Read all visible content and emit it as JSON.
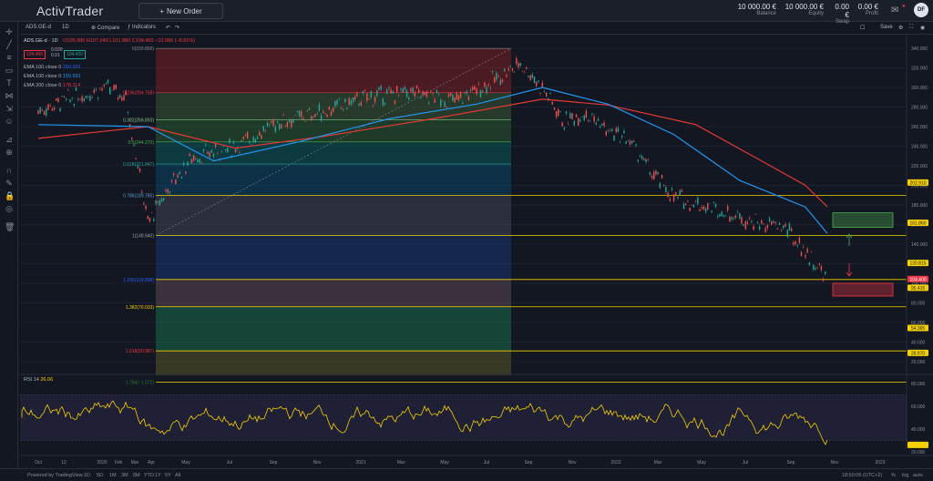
{
  "app": {
    "brand": "ActivTrader",
    "new_order_label": "New Order",
    "account": [
      {
        "value": "10 000.00 €",
        "label": "Balance"
      },
      {
        "value": "10 000.00 €",
        "label": "Equity"
      },
      {
        "value": "0.00 €",
        "label": "Swap"
      },
      {
        "value": "0.00 €",
        "label": "Profit"
      }
    ],
    "avatar": "DF"
  },
  "toolbar": {
    "symbol": "ADS.GE-d",
    "interval": "1D",
    "compare": "Compare",
    "indicators": "Indicators",
    "save": "Save"
  },
  "legend": {
    "symbol": "ADS.GE-d · 1D",
    "ohlc": "O105.080 H107.040 L101.880 C104.400 −10.080 (−8.81%)",
    "bid": "104.400",
    "ask": "104.420",
    "spread_top": "0.020",
    "spread_bottom": "0.01",
    "indicators": [
      {
        "label": "EMA 100 close 0",
        "value": "150.991",
        "color": "#2962ff"
      },
      {
        "label": "EMA 100 close 0",
        "value": "150.991",
        "color": "#2196f3"
      },
      {
        "label": "EMA 200 close 0",
        "value": "178.114",
        "color": "#f23645"
      }
    ]
  },
  "rsi": {
    "label": "RSI 14",
    "value": "26.06"
  },
  "fib_levels": [
    {
      "ratio": "0",
      "label": "0(339.800)",
      "value": 339.8
    },
    {
      "ratio": "0.236",
      "label": "0.236(294.758)",
      "value": 294.758
    },
    {
      "ratio": "0.382",
      "label": "0.382(266.893)",
      "value": 266.893
    },
    {
      "ratio": "0.5",
      "label": "0.5(244.370)",
      "value": 244.37
    },
    {
      "ratio": "0.618",
      "label": "0.618(221.847)",
      "value": 221.847
    },
    {
      "ratio": "0.786",
      "label": "0.786(189.785)",
      "value": 189.785
    },
    {
      "ratio": "1",
      "label": "1(148.940)",
      "value": 148.94
    },
    {
      "ratio": "1.236",
      "label": "1.236(103.898)",
      "value": 103.898
    },
    {
      "ratio": "1.382",
      "label": "1.382(76.033)",
      "value": 76.033
    },
    {
      "ratio": "1.618",
      "label": "1.618(30.987)",
      "value": 30.987
    },
    {
      "ratio": "1.786",
      "label": "1.786(−1.072)",
      "value": -1.072
    }
  ],
  "price_axis": [
    "340.000",
    "320.000",
    "300.000",
    "280.000",
    "260.000",
    "240.000",
    "220.000",
    "200.000",
    "180.000",
    "160.000",
    "140.000",
    "120.000",
    "100.000",
    "80.000",
    "60.000",
    "40.000",
    "20.000"
  ],
  "price_tags": [
    {
      "text": "202.910",
      "value": 202.91,
      "color": "#f5d000",
      "text_color": "#131722"
    },
    {
      "text": "161.860",
      "value": 161.86,
      "color": "#f5d000",
      "text_color": "#131722"
    },
    {
      "text": "120.815",
      "value": 120.815,
      "color": "#f5d000",
      "text_color": "#131722"
    },
    {
      "text": "104.400",
      "value": 104.4,
      "color": "#f23645",
      "text_color": "#ffffff"
    },
    {
      "text": "95.415",
      "value": 95.415,
      "color": "#f5d000",
      "text_color": "#131722"
    },
    {
      "text": "54.365",
      "value": 54.365,
      "color": "#f5d000",
      "text_color": "#131722"
    },
    {
      "text": "28.970",
      "value": 28.97,
      "color": "#f5d000",
      "text_color": "#131722"
    }
  ],
  "rsi_axis": [
    "80.000",
    "60.000",
    "40.000",
    "20.000"
  ],
  "time_axis": [
    "Oct",
    "12",
    "2020",
    "Feb",
    "Mar",
    "Apr",
    "May",
    "Jul",
    "Sep",
    "Nov",
    "2021",
    "Mar",
    "May",
    "Jul",
    "Sep",
    "Nov",
    "2022",
    "Mar",
    "May",
    "Jul",
    "Sep",
    "Nov",
    "2023"
  ],
  "footer": {
    "powered": "Powered by TradingView",
    "ranges": [
      "1D",
      "5D",
      "1M",
      "3M",
      "6M",
      "YTD",
      "1Y",
      "5Y",
      "All"
    ],
    "clock": "18:50:05 (UTC+2)",
    "scale_opts": [
      "%",
      "log",
      "auto"
    ]
  },
  "chart_data": {
    "type": "candlestick",
    "symbol": "ADS.GE-d",
    "interval": "1D",
    "approx_close_path": [
      [
        "2019-10",
        276
      ],
      [
        "2019-11",
        285
      ],
      [
        "2019-12",
        292
      ],
      [
        "2020-01",
        300
      ],
      [
        "2020-02",
        290
      ],
      [
        "2020-03",
        162
      ],
      [
        "2020-04",
        200
      ],
      [
        "2020-05",
        228
      ],
      [
        "2020-07",
        240
      ],
      [
        "2020-09",
        265
      ],
      [
        "2020-11",
        275
      ],
      [
        "2021-01",
        290
      ],
      [
        "2021-03",
        295
      ],
      [
        "2021-05",
        286
      ],
      [
        "2021-07",
        310
      ],
      [
        "2021-08",
        325
      ],
      [
        "2021-09",
        300
      ],
      [
        "2021-10",
        265
      ],
      [
        "2021-11",
        275
      ],
      [
        "2021-12",
        255
      ],
      [
        "2022-01",
        245
      ],
      [
        "2022-02",
        212
      ],
      [
        "2022-03",
        188
      ],
      [
        "2022-05",
        175
      ],
      [
        "2022-07",
        160
      ],
      [
        "2022-08",
        158
      ],
      [
        "2022-09",
        132
      ],
      [
        "2022-10",
        104.4
      ]
    ],
    "ema100_path": [
      [
        "2019-10",
        262
      ],
      [
        "2020-03",
        260
      ],
      [
        "2020-06",
        225
      ],
      [
        "2020-10",
        245
      ],
      [
        "2021-02",
        268
      ],
      [
        "2021-06",
        283
      ],
      [
        "2021-09",
        300
      ],
      [
        "2021-12",
        283
      ],
      [
        "2022-03",
        252
      ],
      [
        "2022-06",
        205
      ],
      [
        "2022-09",
        178
      ],
      [
        "2022-10",
        150.991
      ]
    ],
    "ema200_path": [
      [
        "2019-10",
        248
      ],
      [
        "2020-03",
        260
      ],
      [
        "2020-07",
        238
      ],
      [
        "2020-11",
        250
      ],
      [
        "2021-04",
        268
      ],
      [
        "2021-09",
        288
      ],
      [
        "2021-12",
        282
      ],
      [
        "2022-04",
        262
      ],
      [
        "2022-07",
        225
      ],
      [
        "2022-09",
        200
      ],
      [
        "2022-10",
        178.114
      ]
    ],
    "ylim": [
      0,
      350
    ],
    "rsi_range": [
      0,
      100
    ]
  }
}
